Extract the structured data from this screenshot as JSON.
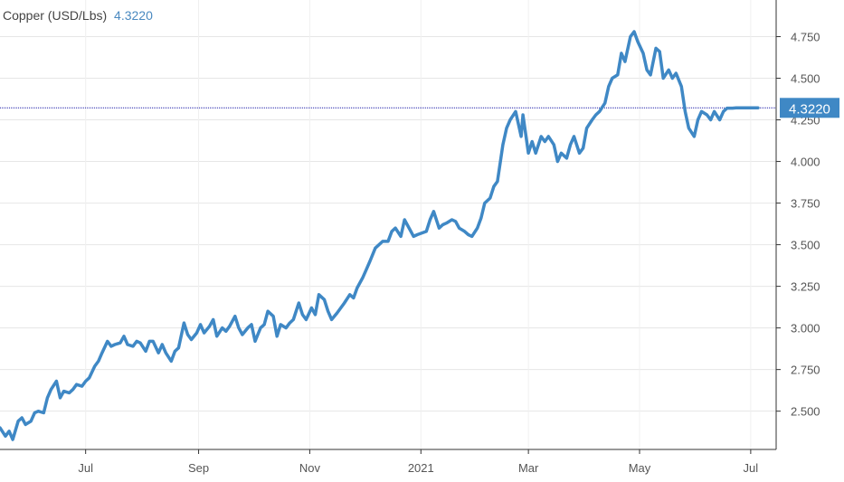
{
  "chart_data": {
    "type": "line",
    "title": "Copper (USD/Lbs)",
    "current_value_label": "4.3220",
    "current_value": 4.322,
    "series": [
      {
        "name": "Copper (USD/Lbs)",
        "color": "#3f88c5",
        "x": [
          "2020-05-15",
          "2020-05-18",
          "2020-05-20",
          "2020-05-22",
          "2020-05-25",
          "2020-05-27",
          "2020-05-29",
          "2020-06-01",
          "2020-06-03",
          "2020-06-05",
          "2020-06-08",
          "2020-06-10",
          "2020-06-12",
          "2020-06-15",
          "2020-06-17",
          "2020-06-19",
          "2020-06-22",
          "2020-06-24",
          "2020-06-26",
          "2020-06-29",
          "2020-07-01",
          "2020-07-03",
          "2020-07-06",
          "2020-07-08",
          "2020-07-10",
          "2020-07-13",
          "2020-07-15",
          "2020-07-17",
          "2020-07-20",
          "2020-07-22",
          "2020-07-24",
          "2020-07-27",
          "2020-07-29",
          "2020-07-31",
          "2020-08-03",
          "2020-08-05",
          "2020-08-07",
          "2020-08-10",
          "2020-08-12",
          "2020-08-14",
          "2020-08-17",
          "2020-08-19",
          "2020-08-21",
          "2020-08-24",
          "2020-08-26",
          "2020-08-28",
          "2020-08-31",
          "2020-09-02",
          "2020-09-04",
          "2020-09-07",
          "2020-09-09",
          "2020-09-11",
          "2020-09-14",
          "2020-09-16",
          "2020-09-18",
          "2020-09-21",
          "2020-09-23",
          "2020-09-25",
          "2020-09-28",
          "2020-09-30",
          "2020-10-02",
          "2020-10-05",
          "2020-10-07",
          "2020-10-09",
          "2020-10-12",
          "2020-10-14",
          "2020-10-16",
          "2020-10-19",
          "2020-10-21",
          "2020-10-23",
          "2020-10-26",
          "2020-10-28",
          "2020-10-30",
          "2020-11-02",
          "2020-11-04",
          "2020-11-06",
          "2020-11-09",
          "2020-11-11",
          "2020-11-13",
          "2020-11-16",
          "2020-11-18",
          "2020-11-20",
          "2020-11-23",
          "2020-11-25",
          "2020-11-27",
          "2020-11-30",
          "2020-12-02",
          "2020-12-04",
          "2020-12-07",
          "2020-12-09",
          "2020-12-11",
          "2020-12-14",
          "2020-12-16",
          "2020-12-18",
          "2020-12-21",
          "2020-12-23",
          "2020-12-28",
          "2020-12-30",
          "2021-01-04",
          "2021-01-06",
          "2021-01-08",
          "2021-01-11",
          "2021-01-13",
          "2021-01-15",
          "2021-01-18",
          "2021-01-20",
          "2021-01-22",
          "2021-01-25",
          "2021-01-27",
          "2021-01-29",
          "2021-02-01",
          "2021-02-03",
          "2021-02-05",
          "2021-02-08",
          "2021-02-10",
          "2021-02-12",
          "2021-02-15",
          "2021-02-17",
          "2021-02-19",
          "2021-02-22",
          "2021-02-24",
          "2021-02-25",
          "2021-02-26",
          "2021-03-01",
          "2021-03-03",
          "2021-03-05",
          "2021-03-08",
          "2021-03-10",
          "2021-03-12",
          "2021-03-15",
          "2021-03-17",
          "2021-03-19",
          "2021-03-22",
          "2021-03-24",
          "2021-03-26",
          "2021-03-29",
          "2021-03-31",
          "2021-04-02",
          "2021-04-05",
          "2021-04-07",
          "2021-04-09",
          "2021-04-12",
          "2021-04-14",
          "2021-04-16",
          "2021-04-19",
          "2021-04-21",
          "2021-04-23",
          "2021-04-26",
          "2021-04-28",
          "2021-04-30",
          "2021-05-03",
          "2021-05-05",
          "2021-05-07",
          "2021-05-10",
          "2021-05-12",
          "2021-05-14",
          "2021-05-17",
          "2021-05-19",
          "2021-05-21",
          "2021-05-24",
          "2021-05-26",
          "2021-05-28",
          "2021-05-31",
          "2021-06-02",
          "2021-06-04",
          "2021-06-07",
          "2021-06-09",
          "2021-06-11",
          "2021-06-14",
          "2021-06-16",
          "2021-06-18",
          "2021-06-21",
          "2021-06-23",
          "2021-06-25",
          "2021-06-28",
          "2021-06-30",
          "2021-07-02",
          "2021-07-05"
        ],
        "y": [
          2.4,
          2.35,
          2.38,
          2.33,
          2.44,
          2.46,
          2.42,
          2.44,
          2.49,
          2.5,
          2.49,
          2.58,
          2.63,
          2.68,
          2.58,
          2.62,
          2.61,
          2.63,
          2.66,
          2.65,
          2.68,
          2.7,
          2.77,
          2.8,
          2.85,
          2.92,
          2.89,
          2.9,
          2.91,
          2.95,
          2.9,
          2.89,
          2.92,
          2.91,
          2.86,
          2.92,
          2.92,
          2.85,
          2.9,
          2.85,
          2.8,
          2.86,
          2.88,
          3.03,
          2.96,
          2.93,
          2.97,
          3.02,
          2.97,
          3.01,
          3.05,
          2.95,
          3.0,
          2.98,
          3.01,
          3.07,
          3.0,
          2.96,
          3.0,
          3.02,
          2.92,
          3.0,
          3.02,
          3.1,
          3.07,
          2.95,
          3.02,
          3.0,
          3.03,
          3.05,
          3.15,
          3.08,
          3.05,
          3.12,
          3.08,
          3.2,
          3.17,
          3.1,
          3.05,
          3.09,
          3.12,
          3.15,
          3.2,
          3.18,
          3.24,
          3.3,
          3.35,
          3.4,
          3.48,
          3.5,
          3.52,
          3.52,
          3.58,
          3.6,
          3.55,
          3.65,
          3.55,
          3.56,
          3.58,
          3.65,
          3.7,
          3.6,
          3.62,
          3.63,
          3.65,
          3.64,
          3.6,
          3.58,
          3.56,
          3.55,
          3.6,
          3.66,
          3.75,
          3.78,
          3.85,
          3.88,
          4.1,
          4.2,
          4.25,
          4.3,
          4.2,
          4.15,
          4.28,
          4.05,
          4.12,
          4.05,
          4.15,
          4.12,
          4.15,
          4.1,
          4.0,
          4.05,
          4.02,
          4.1,
          4.15,
          4.05,
          4.08,
          4.2,
          4.25,
          4.28,
          4.3,
          4.35,
          4.45,
          4.5,
          4.52,
          4.65,
          4.6,
          4.75,
          4.78,
          4.72,
          4.65,
          4.55,
          4.52,
          4.68,
          4.66,
          4.5,
          4.55,
          4.5,
          4.53,
          4.45,
          4.3,
          4.2,
          4.15,
          4.25,
          4.3,
          4.28,
          4.25,
          4.3,
          4.25,
          4.3,
          4.32,
          4.32,
          4.322,
          4.322,
          4.322,
          4.322,
          4.322,
          4.322
        ]
      }
    ],
    "x_tick_labels": [
      "Jul",
      "Sep",
      "Nov",
      "2021",
      "Mar",
      "May",
      "Jul"
    ],
    "x_tick_dates": [
      "2020-07-01",
      "2020-09-01",
      "2020-11-01",
      "2021-01-01",
      "2021-03-01",
      "2021-05-01",
      "2021-07-01"
    ],
    "y_tick_labels": [
      "2.500",
      "2.750",
      "3.000",
      "3.250",
      "3.500",
      "3.750",
      "4.000",
      "4.250",
      "4.500",
      "4.750"
    ],
    "y_ticks": [
      2.5,
      2.75,
      3.0,
      3.25,
      3.5,
      3.75,
      4.0,
      4.25,
      4.5,
      4.75
    ],
    "xlim": [
      "2020-05-15",
      "2021-07-10"
    ],
    "ylim": [
      2.27,
      4.97
    ],
    "xlabel": "",
    "ylabel": "",
    "grid": true,
    "axis_side": "right",
    "reference_line": {
      "value": 4.322,
      "style": "dotted",
      "color": "#1a1aa8"
    },
    "badge_color": "#3f88c5",
    "grid_color": "#e6e6e6",
    "axis_color": "#333333",
    "label_color": "#555555"
  }
}
